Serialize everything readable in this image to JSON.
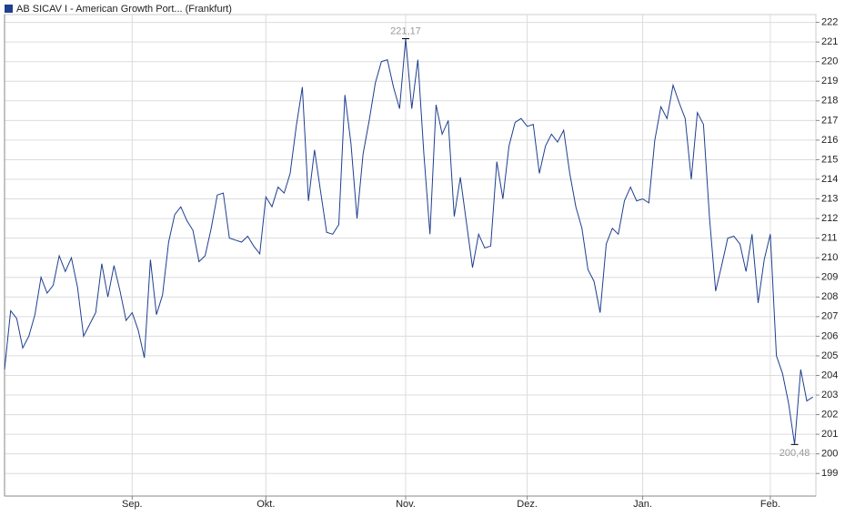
{
  "chart_data": {
    "type": "line",
    "xlim": [
      0,
      133.5
    ],
    "xticks": [
      {
        "value": 21,
        "label": "Sep."
      },
      {
        "value": 43,
        "label": "Okt."
      },
      {
        "value": 66,
        "label": "Nov."
      },
      {
        "value": 86,
        "label": "Dez."
      },
      {
        "value": 105,
        "label": "Jan."
      },
      {
        "value": 126,
        "label": "Feb."
      }
    ],
    "ylim": [
      197.85,
      222.4
    ],
    "yticks": [
      199,
      200,
      201,
      202,
      203,
      204,
      205,
      206,
      207,
      208,
      209,
      210,
      211,
      212,
      213,
      214,
      215,
      216,
      217,
      218,
      219,
      220,
      221,
      222
    ],
    "grid": true,
    "series": [
      {
        "name": "AB SICAV I - American Growth Port... (Frankfurt)",
        "color": "#1f3f8f",
        "values": [
          204.3,
          207.3,
          206.9,
          205.4,
          206.0,
          207.1,
          209.0,
          208.2,
          208.6,
          210.1,
          209.3,
          210.0,
          208.5,
          206.0,
          206.6,
          207.2,
          209.7,
          208.0,
          209.6,
          208.3,
          206.8,
          207.2,
          206.3,
          204.9,
          209.9,
          207.1,
          208.1,
          210.8,
          212.2,
          212.6,
          211.9,
          211.4,
          209.8,
          210.1,
          211.5,
          213.2,
          213.3,
          211.0,
          210.9,
          210.8,
          211.1,
          210.6,
          210.2,
          213.1,
          212.6,
          213.6,
          213.3,
          214.3,
          216.7,
          218.7,
          212.9,
          215.5,
          213.4,
          211.3,
          211.2,
          211.7,
          218.3,
          215.8,
          212.0,
          215.3,
          217.0,
          218.9,
          220.0,
          220.1,
          218.7,
          217.6,
          221.17,
          217.6,
          220.1,
          215.3,
          211.2,
          217.8,
          216.3,
          217.0,
          212.1,
          214.1,
          211.8,
          209.5,
          211.2,
          210.5,
          210.6,
          214.9,
          213.0,
          215.7,
          216.9,
          217.1,
          216.7,
          216.8,
          214.3,
          215.7,
          216.3,
          215.9,
          216.5,
          214.3,
          212.6,
          211.5,
          209.4,
          208.8,
          207.2,
          210.7,
          211.5,
          211.2,
          212.9,
          213.6,
          212.9,
          213.0,
          212.8,
          216.0,
          217.7,
          217.1,
          218.8,
          217.9,
          217.1,
          214.0,
          217.4,
          216.8,
          212.0,
          208.3,
          209.6,
          211.0,
          211.1,
          210.7,
          209.3,
          211.2,
          207.7,
          209.9,
          211.2,
          205.0,
          204.1,
          202.6,
          200.48,
          204.3,
          202.7,
          202.9
        ],
        "value_labels": [
          null,
          null,
          null,
          null,
          null,
          null,
          null,
          null,
          null,
          null,
          null,
          null,
          null,
          null,
          null,
          null,
          null,
          null,
          null,
          null,
          null,
          null,
          null,
          null,
          null,
          null,
          null,
          null,
          null,
          null,
          null,
          null,
          null,
          null,
          null,
          null,
          null,
          null,
          null,
          null,
          null,
          null,
          null,
          null,
          null,
          null,
          null,
          null,
          null,
          null,
          null,
          null,
          null,
          null,
          null,
          null,
          null,
          null,
          null,
          null,
          null,
          null,
          null,
          null,
          null,
          null,
          "221,17",
          null,
          null,
          null,
          null,
          null,
          null,
          null,
          null,
          null,
          null,
          null,
          null,
          null,
          null,
          null,
          null,
          null,
          null,
          null,
          null,
          null,
          null,
          null,
          null,
          null,
          null,
          null,
          null,
          null,
          null,
          null,
          null,
          null,
          null,
          null,
          null,
          null,
          null,
          null,
          null,
          null,
          null,
          null,
          null,
          null,
          null,
          null,
          null,
          null,
          null,
          null,
          null,
          null,
          null,
          null,
          null,
          null,
          null,
          null,
          null,
          null,
          null,
          null,
          "200,48",
          null,
          null,
          null
        ]
      }
    ]
  }
}
